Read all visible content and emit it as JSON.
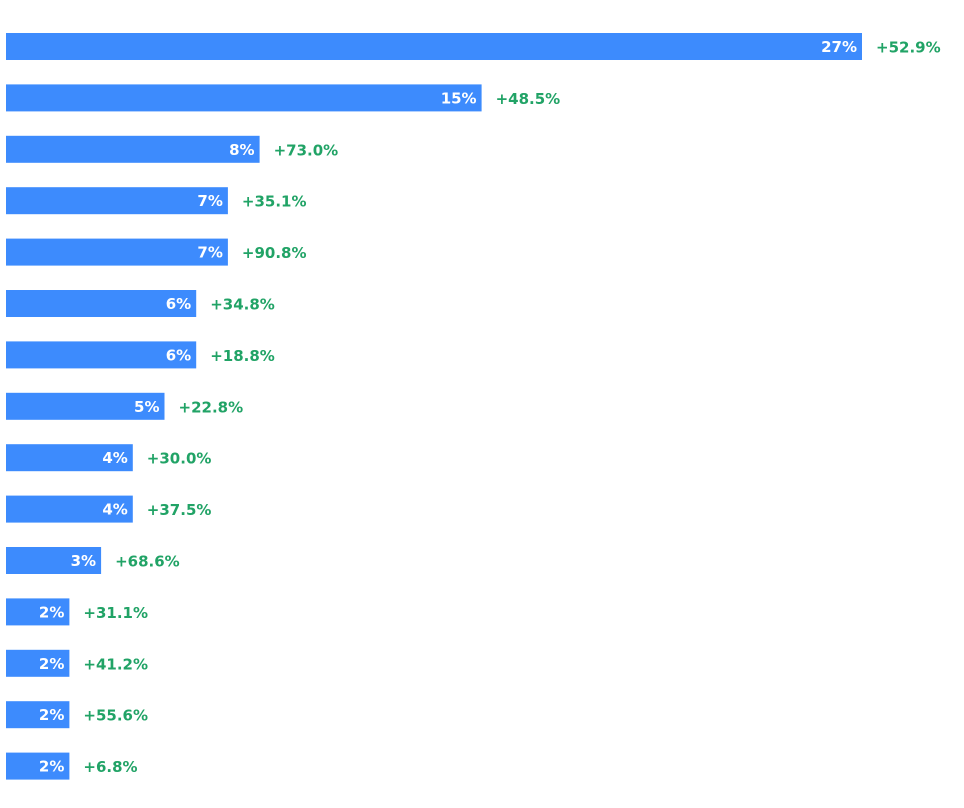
{
  "chart_data": {
    "type": "bar",
    "orientation": "horizontal",
    "bar_color": "#3d8bfd",
    "change_color": "#21a366",
    "values": [
      27,
      15,
      8,
      7,
      7,
      6,
      6,
      5,
      4,
      4,
      3,
      2,
      2,
      2,
      2
    ],
    "value_labels": [
      "27%",
      "15%",
      "8%",
      "7%",
      "7%",
      "6%",
      "6%",
      "5%",
      "4%",
      "4%",
      "3%",
      "2%",
      "2%",
      "2%",
      "2%"
    ],
    "change_labels": [
      "+52.9%",
      "+48.5%",
      "+73.0%",
      "+35.1%",
      "+90.8%",
      "+34.8%",
      "+18.8%",
      "+22.8%",
      "+30.0%",
      "+37.5%",
      "+68.6%",
      "+31.1%",
      "+41.2%",
      "+55.6%",
      "+6.8%"
    ],
    "xlim": [
      0,
      27
    ],
    "grid": false,
    "legend": "none"
  }
}
